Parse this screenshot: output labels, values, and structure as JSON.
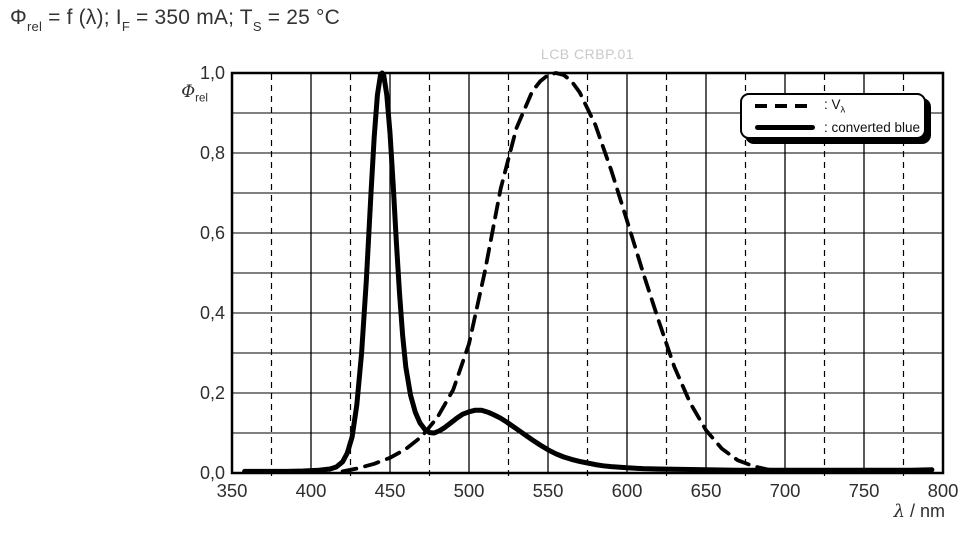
{
  "title": {
    "s1": "Φ",
    "s1_sub": "rel",
    "s2": " = f (λ); I",
    "s2_sub": "F",
    "s3": " = 350 mA; T",
    "s3_sub": "S",
    "s4": " = 25 °C"
  },
  "watermark": {
    "text": "LCB CRBP.01"
  },
  "axes": {
    "y_symbol": "Φ",
    "y_symbol_sub": "rel",
    "x_symbol": "λ",
    "x_unit": " / nm"
  },
  "legend": {
    "v_lambda_prefix": ": V",
    "v_lambda_sub": "λ",
    "converted_blue": ": converted blue"
  },
  "colors": {
    "curve": "#000000",
    "grid": "#000000",
    "frame": "#000000",
    "text": "#2e2e2e",
    "watermark": "#c9c9c9"
  },
  "chart_data": {
    "type": "line",
    "title": "Φrel = f (λ); IF = 350 mA; TS = 25 °C",
    "xlabel": "λ / nm",
    "ylabel": "Φrel",
    "xlim": [
      350,
      800
    ],
    "ylim": [
      0,
      1.0
    ],
    "grid": true,
    "legend_position": "top-right",
    "x_major_ticks": [
      350,
      400,
      450,
      500,
      550,
      600,
      650,
      700,
      750,
      800
    ],
    "x_minor_ticks": [
      375,
      425,
      475,
      525,
      575,
      625,
      675,
      725,
      775
    ],
    "y_label_ticks": [
      0,
      0.2,
      0.4,
      0.6,
      0.8,
      1.0
    ],
    "y_tick_labels": [
      "0,0",
      "0,2",
      "0,4",
      "0,6",
      "0,8",
      "1,0"
    ],
    "y_gridlines": [
      0.1,
      0.2,
      0.3,
      0.4,
      0.5,
      0.6,
      0.7,
      0.8,
      0.9
    ],
    "series": [
      {
        "name": "V_lambda",
        "style": "dashed",
        "points": [
          [
            420,
            0.004
          ],
          [
            430,
            0.012
          ],
          [
            440,
            0.023
          ],
          [
            450,
            0.038
          ],
          [
            460,
            0.06
          ],
          [
            470,
            0.091
          ],
          [
            480,
            0.139
          ],
          [
            490,
            0.208
          ],
          [
            500,
            0.323
          ],
          [
            510,
            0.503
          ],
          [
            520,
            0.71
          ],
          [
            530,
            0.862
          ],
          [
            540,
            0.954
          ],
          [
            545,
            0.979
          ],
          [
            550,
            0.995
          ],
          [
            555,
            1.0
          ],
          [
            560,
            0.995
          ],
          [
            565,
            0.979
          ],
          [
            570,
            0.952
          ],
          [
            580,
            0.87
          ],
          [
            590,
            0.757
          ],
          [
            600,
            0.631
          ],
          [
            610,
            0.503
          ],
          [
            620,
            0.381
          ],
          [
            630,
            0.265
          ],
          [
            640,
            0.175
          ],
          [
            650,
            0.107
          ],
          [
            660,
            0.061
          ],
          [
            670,
            0.032
          ],
          [
            680,
            0.017
          ],
          [
            690,
            0.008
          ],
          [
            700,
            0.004
          ],
          [
            710,
            0.002
          ]
        ]
      },
      {
        "name": "converted_blue",
        "style": "solid",
        "points": [
          [
            358,
            0.004
          ],
          [
            370,
            0.004
          ],
          [
            385,
            0.004
          ],
          [
            395,
            0.005
          ],
          [
            405,
            0.007
          ],
          [
            412,
            0.01
          ],
          [
            416,
            0.015
          ],
          [
            420,
            0.028
          ],
          [
            423,
            0.05
          ],
          [
            426,
            0.09
          ],
          [
            429,
            0.17
          ],
          [
            432,
            0.3
          ],
          [
            435,
            0.48
          ],
          [
            438,
            0.7
          ],
          [
            440,
            0.84
          ],
          [
            442,
            0.945
          ],
          [
            444,
            0.995
          ],
          [
            445,
            1.0
          ],
          [
            446,
            0.995
          ],
          [
            448,
            0.945
          ],
          [
            450,
            0.85
          ],
          [
            452,
            0.72
          ],
          [
            454,
            0.58
          ],
          [
            456,
            0.45
          ],
          [
            458,
            0.345
          ],
          [
            460,
            0.265
          ],
          [
            463,
            0.195
          ],
          [
            466,
            0.152
          ],
          [
            469,
            0.125
          ],
          [
            472,
            0.109
          ],
          [
            475,
            0.101
          ],
          [
            478,
            0.1
          ],
          [
            481,
            0.105
          ],
          [
            484,
            0.112
          ],
          [
            487,
            0.121
          ],
          [
            490,
            0.13
          ],
          [
            493,
            0.139
          ],
          [
            496,
            0.147
          ],
          [
            500,
            0.153
          ],
          [
            504,
            0.157
          ],
          [
            508,
            0.157
          ],
          [
            512,
            0.152
          ],
          [
            516,
            0.145
          ],
          [
            520,
            0.137
          ],
          [
            524,
            0.127
          ],
          [
            528,
            0.116
          ],
          [
            532,
            0.105
          ],
          [
            536,
            0.094
          ],
          [
            540,
            0.083
          ],
          [
            545,
            0.07
          ],
          [
            550,
            0.058
          ],
          [
            555,
            0.048
          ],
          [
            560,
            0.04
          ],
          [
            565,
            0.034
          ],
          [
            570,
            0.029
          ],
          [
            575,
            0.025
          ],
          [
            580,
            0.021
          ],
          [
            585,
            0.018
          ],
          [
            590,
            0.016
          ],
          [
            600,
            0.013
          ],
          [
            610,
            0.011
          ],
          [
            620,
            0.01
          ],
          [
            635,
            0.009
          ],
          [
            650,
            0.008
          ],
          [
            670,
            0.007
          ],
          [
            700,
            0.007
          ],
          [
            730,
            0.007
          ],
          [
            760,
            0.007
          ],
          [
            780,
            0.007
          ],
          [
            793,
            0.008
          ]
        ]
      }
    ]
  }
}
